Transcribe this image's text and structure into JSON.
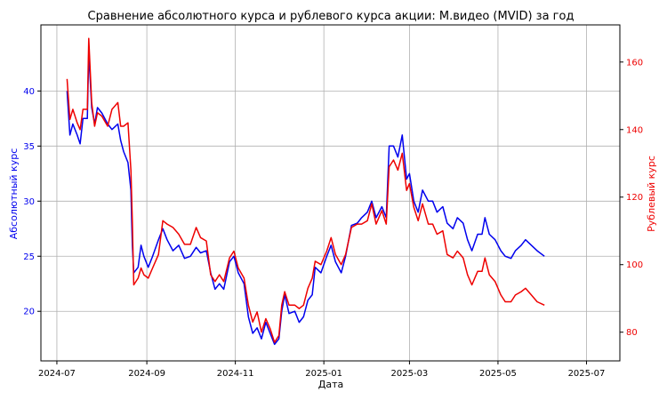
{
  "chart_data": {
    "type": "line",
    "title": "Сравнение абсолютного курса и рублевого курса акции: М.видео (MVID) за год",
    "xlabel": "Дата",
    "ylabel_left": "Абсолютный курс",
    "ylabel_right": "Рублевый курс",
    "x_range": [
      "2024-06-20",
      "2025-07-24"
    ],
    "x_ticks": [
      "2024-07",
      "2024-09",
      "2024-11",
      "2025-01",
      "2025-03",
      "2025-05",
      "2025-07"
    ],
    "x_tick_dates": [
      "2024-07-01",
      "2024-09-01",
      "2024-11-01",
      "2025-01-01",
      "2025-03-01",
      "2025-05-01",
      "2025-07-01"
    ],
    "ylim_left": [
      15.5,
      46
    ],
    "yticks_left": [
      "20",
      "25",
      "30",
      "35",
      "40"
    ],
    "ylim_right": [
      71.5,
      171
    ],
    "yticks_right": [
      "80",
      "100",
      "120",
      "140",
      "160"
    ],
    "grid": true,
    "colors": {
      "absolute": "#0000ee",
      "ruble": "#ee0000",
      "text": "#000000"
    },
    "series": [
      {
        "axis": "left",
        "color": "#0000ee",
        "points": [
          [
            "2024-07-08",
            40.0
          ],
          [
            "2024-07-10",
            36.0
          ],
          [
            "2024-07-12",
            37.0
          ],
          [
            "2024-07-15",
            36.0
          ],
          [
            "2024-07-17",
            35.2
          ],
          [
            "2024-07-19",
            37.5
          ],
          [
            "2024-07-22",
            37.5
          ],
          [
            "2024-07-23",
            43.5
          ],
          [
            "2024-07-25",
            38.5
          ],
          [
            "2024-07-27",
            37.0
          ],
          [
            "2024-07-29",
            38.5
          ],
          [
            "2024-08-01",
            38.0
          ],
          [
            "2024-08-05",
            37.0
          ],
          [
            "2024-08-08",
            36.5
          ],
          [
            "2024-08-12",
            37.0
          ],
          [
            "2024-08-14",
            35.5
          ],
          [
            "2024-08-16",
            34.5
          ],
          [
            "2024-08-19",
            33.5
          ],
          [
            "2024-08-21",
            31.0
          ],
          [
            "2024-08-22",
            26.0
          ],
          [
            "2024-08-23",
            23.5
          ],
          [
            "2024-08-26",
            24.0
          ],
          [
            "2024-08-28",
            26.0
          ],
          [
            "2024-08-30",
            25.0
          ],
          [
            "2024-09-02",
            24.0
          ],
          [
            "2024-09-05",
            25.0
          ],
          [
            "2024-09-09",
            26.5
          ],
          [
            "2024-09-12",
            27.5
          ],
          [
            "2024-09-15",
            26.5
          ],
          [
            "2024-09-19",
            25.5
          ],
          [
            "2024-09-23",
            26.0
          ],
          [
            "2024-09-27",
            24.8
          ],
          [
            "2024-10-01",
            25.0
          ],
          [
            "2024-10-05",
            25.8
          ],
          [
            "2024-10-08",
            25.3
          ],
          [
            "2024-10-12",
            25.5
          ],
          [
            "2024-10-15",
            23.5
          ],
          [
            "2024-10-18",
            22.0
          ],
          [
            "2024-10-21",
            22.5
          ],
          [
            "2024-10-24",
            22.0
          ],
          [
            "2024-10-28",
            24.5
          ],
          [
            "2024-10-31",
            25.0
          ],
          [
            "2024-11-03",
            23.5
          ],
          [
            "2024-11-07",
            22.5
          ],
          [
            "2024-11-10",
            19.5
          ],
          [
            "2024-11-13",
            18.0
          ],
          [
            "2024-11-16",
            18.5
          ],
          [
            "2024-11-19",
            17.5
          ],
          [
            "2024-11-22",
            19.0
          ],
          [
            "2024-11-25",
            18.0
          ],
          [
            "2024-11-28",
            17.0
          ],
          [
            "2024-12-01",
            17.5
          ],
          [
            "2024-12-03",
            20.0
          ],
          [
            "2024-12-05",
            21.5
          ],
          [
            "2024-12-08",
            19.8
          ],
          [
            "2024-12-12",
            20.0
          ],
          [
            "2024-12-15",
            19.0
          ],
          [
            "2024-12-18",
            19.5
          ],
          [
            "2024-12-21",
            21.0
          ],
          [
            "2024-12-24",
            21.5
          ],
          [
            "2024-12-26",
            24.0
          ],
          [
            "2024-12-30",
            23.5
          ],
          [
            "2025-01-03",
            25.0
          ],
          [
            "2025-01-06",
            26.0
          ],
          [
            "2025-01-09",
            24.5
          ],
          [
            "2025-01-13",
            23.5
          ],
          [
            "2025-01-16",
            25.0
          ],
          [
            "2025-01-20",
            27.8
          ],
          [
            "2025-01-24",
            28.0
          ],
          [
            "2025-01-27",
            28.5
          ],
          [
            "2025-01-31",
            29.0
          ],
          [
            "2025-02-03",
            30.0
          ],
          [
            "2025-02-06",
            28.5
          ],
          [
            "2025-02-10",
            29.5
          ],
          [
            "2025-02-13",
            28.5
          ],
          [
            "2025-02-15",
            35.0
          ],
          [
            "2025-02-18",
            35.0
          ],
          [
            "2025-02-21",
            34.0
          ],
          [
            "2025-02-24",
            36.0
          ],
          [
            "2025-02-27",
            32.0
          ],
          [
            "2025-03-01",
            32.5
          ],
          [
            "2025-03-04",
            30.0
          ],
          [
            "2025-03-07",
            29.0
          ],
          [
            "2025-03-10",
            31.0
          ],
          [
            "2025-03-14",
            30.0
          ],
          [
            "2025-03-17",
            30.0
          ],
          [
            "2025-03-20",
            29.0
          ],
          [
            "2025-03-24",
            29.5
          ],
          [
            "2025-03-27",
            28.0
          ],
          [
            "2025-03-31",
            27.5
          ],
          [
            "2025-04-03",
            28.5
          ],
          [
            "2025-04-07",
            28.0
          ],
          [
            "2025-04-10",
            26.5
          ],
          [
            "2025-04-13",
            25.5
          ],
          [
            "2025-04-17",
            27.0
          ],
          [
            "2025-04-20",
            27.0
          ],
          [
            "2025-04-22",
            28.5
          ],
          [
            "2025-04-25",
            27.0
          ],
          [
            "2025-04-29",
            26.5
          ],
          [
            "2025-05-03",
            25.5
          ],
          [
            "2025-05-06",
            25.0
          ],
          [
            "2025-05-10",
            24.8
          ],
          [
            "2025-05-13",
            25.5
          ],
          [
            "2025-05-17",
            26.0
          ],
          [
            "2025-05-20",
            26.5
          ],
          [
            "2025-05-24",
            26.0
          ],
          [
            "2025-05-28",
            25.5
          ],
          [
            "2025-06-02",
            25.0
          ]
        ]
      },
      {
        "axis": "right",
        "color": "#ee0000",
        "points": [
          [
            "2024-07-08",
            155
          ],
          [
            "2024-07-10",
            143
          ],
          [
            "2024-07-12",
            146
          ],
          [
            "2024-07-15",
            142
          ],
          [
            "2024-07-17",
            140
          ],
          [
            "2024-07-19",
            146
          ],
          [
            "2024-07-22",
            146
          ],
          [
            "2024-07-23",
            167
          ],
          [
            "2024-07-25",
            148
          ],
          [
            "2024-07-27",
            141
          ],
          [
            "2024-07-29",
            145
          ],
          [
            "2024-08-01",
            144
          ],
          [
            "2024-08-05",
            141
          ],
          [
            "2024-08-08",
            146
          ],
          [
            "2024-08-12",
            148
          ],
          [
            "2024-08-14",
            141
          ],
          [
            "2024-08-16",
            141
          ],
          [
            "2024-08-19",
            142
          ],
          [
            "2024-08-21",
            128
          ],
          [
            "2024-08-22",
            113
          ],
          [
            "2024-08-23",
            94
          ],
          [
            "2024-08-26",
            96
          ],
          [
            "2024-08-28",
            99
          ],
          [
            "2024-08-30",
            97
          ],
          [
            "2024-09-02",
            96
          ],
          [
            "2024-09-05",
            99
          ],
          [
            "2024-09-09",
            103
          ],
          [
            "2024-09-12",
            113
          ],
          [
            "2024-09-15",
            112
          ],
          [
            "2024-09-19",
            111
          ],
          [
            "2024-09-23",
            109
          ],
          [
            "2024-09-27",
            106
          ],
          [
            "2024-10-01",
            106
          ],
          [
            "2024-10-05",
            111
          ],
          [
            "2024-10-08",
            108
          ],
          [
            "2024-10-12",
            107
          ],
          [
            "2024-10-15",
            97
          ],
          [
            "2024-10-18",
            95
          ],
          [
            "2024-10-21",
            97
          ],
          [
            "2024-10-24",
            95
          ],
          [
            "2024-10-28",
            102
          ],
          [
            "2024-10-31",
            104
          ],
          [
            "2024-11-03",
            99
          ],
          [
            "2024-11-07",
            96
          ],
          [
            "2024-11-10",
            88
          ],
          [
            "2024-11-13",
            83
          ],
          [
            "2024-11-16",
            86
          ],
          [
            "2024-11-19",
            80
          ],
          [
            "2024-11-22",
            84
          ],
          [
            "2024-11-25",
            81
          ],
          [
            "2024-11-28",
            77
          ],
          [
            "2024-12-01",
            79
          ],
          [
            "2024-12-03",
            88
          ],
          [
            "2024-12-05",
            92
          ],
          [
            "2024-12-08",
            88
          ],
          [
            "2024-12-12",
            88
          ],
          [
            "2024-12-15",
            87
          ],
          [
            "2024-12-18",
            88
          ],
          [
            "2024-12-21",
            93
          ],
          [
            "2024-12-24",
            96
          ],
          [
            "2024-12-26",
            101
          ],
          [
            "2024-12-30",
            100
          ],
          [
            "2025-01-03",
            104
          ],
          [
            "2025-01-06",
            108
          ],
          [
            "2025-01-09",
            103
          ],
          [
            "2025-01-13",
            100
          ],
          [
            "2025-01-16",
            103
          ],
          [
            "2025-01-20",
            111
          ],
          [
            "2025-01-24",
            112
          ],
          [
            "2025-01-27",
            112
          ],
          [
            "2025-01-31",
            113
          ],
          [
            "2025-02-03",
            118
          ],
          [
            "2025-02-06",
            112
          ],
          [
            "2025-02-10",
            116
          ],
          [
            "2025-02-13",
            112
          ],
          [
            "2025-02-15",
            129
          ],
          [
            "2025-02-18",
            131
          ],
          [
            "2025-02-21",
            128
          ],
          [
            "2025-02-24",
            133
          ],
          [
            "2025-02-27",
            122
          ],
          [
            "2025-03-01",
            124
          ],
          [
            "2025-03-04",
            117
          ],
          [
            "2025-03-07",
            113
          ],
          [
            "2025-03-10",
            118
          ],
          [
            "2025-03-14",
            112
          ],
          [
            "2025-03-17",
            112
          ],
          [
            "2025-03-20",
            109
          ],
          [
            "2025-03-24",
            110
          ],
          [
            "2025-03-27",
            103
          ],
          [
            "2025-03-31",
            102
          ],
          [
            "2025-04-03",
            104
          ],
          [
            "2025-04-07",
            102
          ],
          [
            "2025-04-10",
            97
          ],
          [
            "2025-04-13",
            94
          ],
          [
            "2025-04-17",
            98
          ],
          [
            "2025-04-20",
            98
          ],
          [
            "2025-04-22",
            102
          ],
          [
            "2025-04-25",
            97
          ],
          [
            "2025-04-29",
            95
          ],
          [
            "2025-05-03",
            91
          ],
          [
            "2025-05-06",
            89
          ],
          [
            "2025-05-10",
            89
          ],
          [
            "2025-05-13",
            91
          ],
          [
            "2025-05-17",
            92
          ],
          [
            "2025-05-20",
            93
          ],
          [
            "2025-05-24",
            91
          ],
          [
            "2025-05-28",
            89
          ],
          [
            "2025-06-02",
            88
          ]
        ]
      }
    ]
  }
}
